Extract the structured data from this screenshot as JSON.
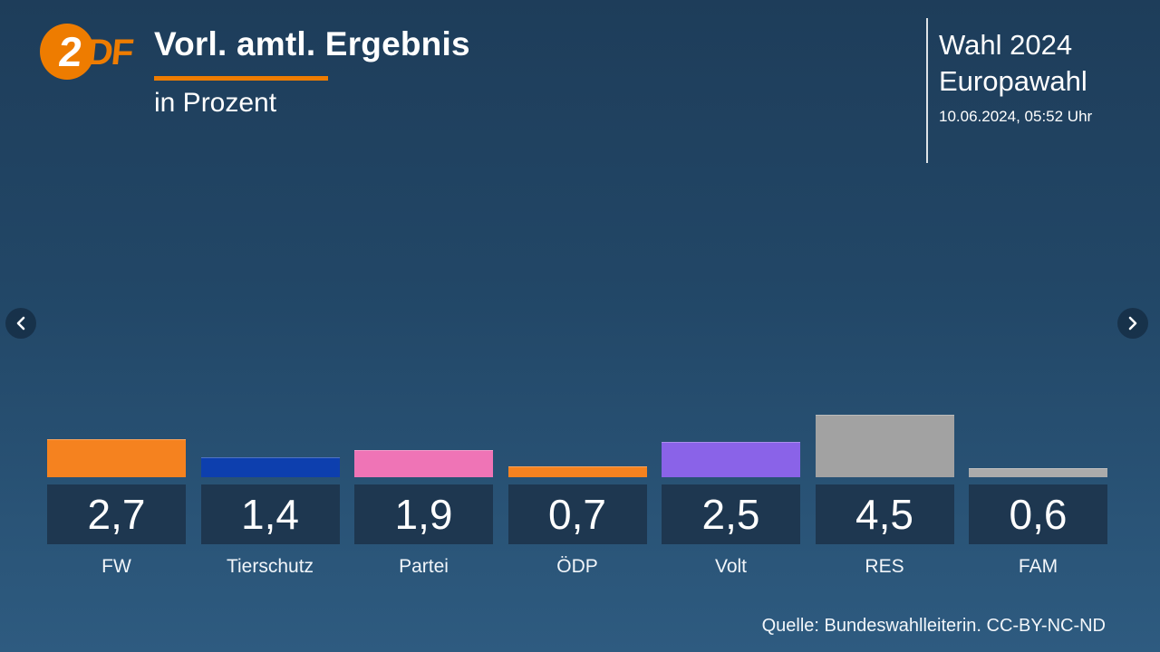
{
  "header": {
    "title": "Vorl. amtl. Ergebnis",
    "subtitle": "in Prozent",
    "logo": {
      "text_2": "2",
      "text_df": "DF"
    },
    "right": {
      "line1": "Wahl 2024",
      "line2": "Europawahl",
      "timestamp": "10.06.2024, 05:52 Uhr"
    }
  },
  "carousel": {
    "prev_icon": "chevron-left-icon",
    "next_icon": "chevron-right-icon"
  },
  "chart_data": {
    "type": "bar",
    "title": "Vorl. amtl. Ergebnis",
    "subtitle": "in Prozent",
    "unit": "percent",
    "categories": [
      "FW",
      "Tierschutz",
      "Partei",
      "ÖDP",
      "Volt",
      "RES",
      "FAM"
    ],
    "values": [
      2.7,
      1.4,
      1.9,
      0.7,
      2.5,
      4.5,
      0.6
    ],
    "display_values": [
      "2,7",
      "1,4",
      "1,9",
      "0,7",
      "2,5",
      "4,5",
      "0,6"
    ],
    "bar_colors": [
      "#F5821F",
      "#0D3FAE",
      "#EF74B6",
      "#F5821F",
      "#8A63E8",
      "#A2A2A2",
      "#ABABAB"
    ],
    "ylim": [
      0,
      5
    ],
    "grid": false,
    "legend": false
  },
  "footer": {
    "source": "Quelle: Bundeswahlleiterin. CC-BY-NC-ND"
  },
  "colors": {
    "accent_orange": "#EE7C00",
    "value_box_navy": "#1E3750",
    "background_top": "#1E3D5A",
    "background_bottom": "#2E5B80"
  }
}
